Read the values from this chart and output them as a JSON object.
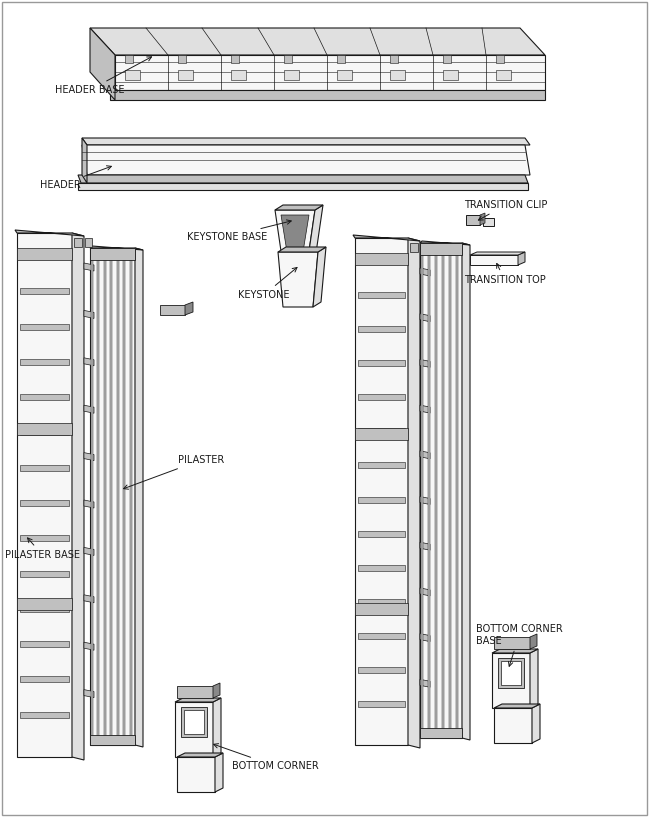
{
  "background_color": "#ffffff",
  "line_color": "#1a1a1a",
  "fill_white": "#f7f7f7",
  "fill_light": "#e0e0e0",
  "fill_medium": "#c0c0c0",
  "fill_dark": "#888888",
  "labels": {
    "header_base": "HEADER BASE",
    "header": "HEADER",
    "keystone_base": "KEYSTONE BASE",
    "keystone": "KEYSTONE",
    "transition_clip": "TRANSITION CLIP",
    "transition_top": "TRANSITION TOP",
    "pilaster_base": "PILASTER BASE",
    "pilaster": "PILASTER",
    "bottom_corner": "BOTTOM CORNER",
    "bottom_corner_base": "BOTTOM CORNER\nBASE"
  },
  "label_fontsize": 7.0,
  "figsize": [
    6.49,
    8.17
  ],
  "dpi": 100
}
